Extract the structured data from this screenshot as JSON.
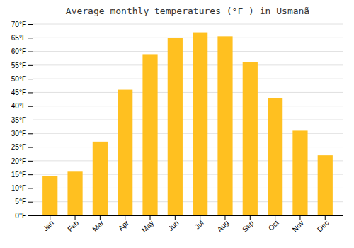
{
  "chart_data": {
    "type": "bar",
    "title": "Average monthly temperatures (°F ) in Usmanã",
    "categories": [
      "Jan",
      "Feb",
      "Mar",
      "Apr",
      "May",
      "Jun",
      "Jul",
      "Aug",
      "Sep",
      "Oct",
      "Nov",
      "Dec"
    ],
    "values": [
      14.5,
      16.0,
      27.0,
      46.0,
      59.0,
      65.0,
      67.0,
      65.5,
      56.0,
      43.0,
      31.0,
      22.0
    ],
    "color": "#FFC020",
    "ylim": [
      0,
      70
    ],
    "yticks": [
      {
        "value": 0,
        "label": "0°F"
      },
      {
        "value": 5,
        "label": "5°F"
      },
      {
        "value": 10,
        "label": "10°F"
      },
      {
        "value": 15,
        "label": "15°F"
      },
      {
        "value": 20,
        "label": "20°F"
      },
      {
        "value": 25,
        "label": "25°F"
      },
      {
        "value": 30,
        "label": "30°F"
      },
      {
        "value": 35,
        "label": "35°F"
      },
      {
        "value": 40,
        "label": "40°F"
      },
      {
        "value": 45,
        "label": "45°F"
      },
      {
        "value": 50,
        "label": "50°F"
      },
      {
        "value": 55,
        "label": "55°F"
      },
      {
        "value": 60,
        "label": "60°F"
      },
      {
        "value": 65,
        "label": "65°F"
      },
      {
        "value": 70,
        "label": "70°F"
      }
    ],
    "grid": true
  }
}
